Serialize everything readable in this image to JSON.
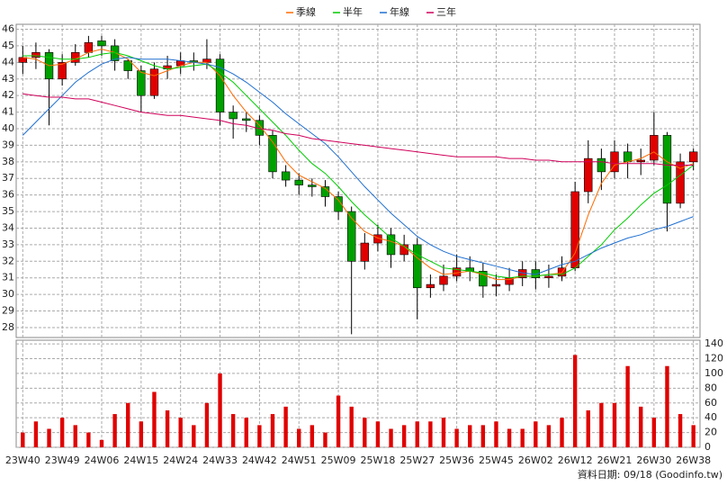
{
  "chart_data": [
    {
      "type": "candlestick",
      "legend": "top",
      "grid": true,
      "up_color": "#e00000",
      "down_color": "#00a000",
      "categories": [
        "23W40",
        null,
        null,
        "23W49",
        null,
        null,
        "24W06",
        null,
        null,
        "24W15",
        null,
        null,
        "24W24",
        null,
        null,
        "24W33",
        null,
        null,
        "24W42",
        null,
        null,
        "24W51",
        null,
        null,
        "25W09",
        null,
        null,
        "25W18",
        null,
        null,
        "25W27",
        null,
        null,
        "25W36",
        null,
        null,
        "25W45",
        null,
        null,
        "26W02",
        null,
        null,
        "26W12",
        null,
        null,
        "26W21",
        null,
        null,
        "26W30",
        null,
        null,
        "26W38"
      ],
      "open": [
        44.0,
        44.3,
        44.6,
        43.0,
        44.0,
        44.6,
        45.3,
        45.0,
        44.1,
        43.5,
        42.0,
        43.6,
        43.8,
        44.1,
        44.0,
        44.2,
        41.0,
        40.6,
        40.5,
        39.6,
        37.4,
        36.9,
        36.6,
        36.5,
        35.9,
        35.0,
        32.0,
        33.1,
        33.6,
        32.4,
        33.0,
        30.4,
        30.6,
        31.1,
        31.6,
        31.4,
        30.5,
        30.6,
        31.0,
        31.5,
        31.0,
        31.1,
        31.6,
        36.2,
        38.2,
        37.4,
        38.6,
        38.0,
        38.1,
        39.6,
        35.5,
        38.0
      ],
      "high": [
        45.0,
        45.2,
        44.8,
        44.5,
        45.1,
        45.6,
        45.6,
        45.4,
        44.2,
        43.8,
        44.0,
        44.4,
        44.6,
        44.6,
        45.4,
        44.5,
        41.4,
        41.0,
        40.8,
        39.9,
        37.8,
        37.3,
        37.0,
        36.9,
        36.2,
        35.3,
        33.7,
        34.2,
        34.0,
        33.6,
        33.4,
        31.2,
        31.8,
        32.4,
        32.3,
        31.9,
        31.2,
        31.6,
        32.0,
        32.0,
        31.8,
        32.3,
        36.8,
        39.3,
        38.8,
        39.3,
        39.1,
        38.8,
        41.0,
        39.8,
        38.5,
        38.8
      ],
      "low": [
        43.3,
        43.6,
        40.2,
        42.6,
        43.8,
        44.3,
        44.4,
        43.5,
        43.0,
        41.0,
        41.8,
        43.0,
        43.3,
        43.5,
        43.6,
        40.2,
        39.4,
        39.8,
        39.0,
        37.0,
        36.5,
        36.0,
        35.9,
        35.3,
        34.5,
        27.6,
        31.5,
        32.6,
        31.6,
        32.0,
        28.5,
        29.8,
        30.2,
        30.8,
        30.8,
        29.8,
        29.9,
        30.2,
        30.5,
        30.3,
        30.4,
        30.8,
        31.4,
        35.5,
        36.3,
        37.0,
        37.0,
        37.2,
        37.8,
        33.8,
        35.2,
        37.5
      ],
      "close": [
        44.3,
        44.6,
        43.0,
        44.0,
        44.6,
        45.2,
        45.0,
        44.1,
        43.5,
        42.0,
        43.6,
        43.8,
        44.1,
        44.0,
        44.2,
        41.0,
        40.6,
        40.5,
        39.6,
        37.4,
        36.9,
        36.6,
        36.5,
        35.9,
        35.0,
        32.0,
        33.1,
        33.6,
        32.4,
        33.0,
        30.4,
        30.6,
        31.1,
        31.6,
        31.4,
        30.5,
        30.6,
        31.0,
        31.5,
        31.0,
        31.1,
        31.6,
        36.2,
        38.2,
        37.4,
        38.6,
        38.0,
        38.1,
        39.6,
        35.5,
        38.0,
        38.6
      ],
      "series": [
        {
          "name": "季線",
          "color": "#ff6a00",
          "values": [
            44.3,
            44.2,
            43.8,
            43.9,
            44.2,
            44.6,
            44.8,
            44.6,
            44.2,
            43.4,
            43.2,
            43.5,
            43.8,
            44.0,
            44.0,
            43.2,
            42.0,
            41.0,
            40.2,
            39.2,
            38.0,
            37.2,
            36.8,
            36.4,
            35.7,
            34.6,
            33.8,
            33.4,
            33.2,
            32.9,
            32.2,
            31.6,
            31.2,
            31.3,
            31.4,
            31.2,
            30.9,
            30.9,
            31.1,
            31.1,
            31.2,
            31.3,
            32.5,
            34.8,
            36.7,
            37.8,
            38.0,
            38.2,
            38.6,
            38.0,
            37.6,
            37.9
          ]
        },
        {
          "name": "半年",
          "color": "#00cc00",
          "values": [
            44.4,
            44.4,
            44.3,
            44.2,
            44.2,
            44.3,
            44.5,
            44.6,
            44.4,
            44.1,
            43.8,
            43.6,
            43.7,
            43.8,
            43.9,
            43.4,
            42.8,
            42.0,
            41.2,
            40.4,
            39.6,
            38.7,
            37.9,
            37.3,
            36.5,
            35.6,
            34.8,
            34.1,
            33.4,
            32.9,
            32.4,
            32.0,
            31.6,
            31.5,
            31.4,
            31.3,
            31.1,
            31.0,
            31.1,
            31.1,
            31.2,
            31.2,
            31.6,
            32.3,
            33.0,
            33.9,
            34.6,
            35.4,
            36.1,
            36.6,
            37.2,
            37.8
          ]
        },
        {
          "name": "年線",
          "color": "#1f6fd0",
          "values": [
            39.6,
            40.4,
            41.2,
            42.0,
            42.8,
            43.4,
            43.9,
            44.2,
            44.3,
            44.2,
            44.2,
            44.2,
            44.1,
            44.0,
            43.9,
            43.7,
            43.3,
            42.8,
            42.2,
            41.6,
            40.9,
            40.3,
            39.7,
            39.1,
            38.3,
            37.4,
            36.5,
            35.7,
            34.9,
            34.2,
            33.5,
            33.0,
            32.6,
            32.3,
            32.1,
            31.9,
            31.7,
            31.5,
            31.3,
            31.2,
            31.5,
            31.8,
            32.0,
            32.4,
            32.8,
            33.1,
            33.4,
            33.6,
            33.9,
            34.1,
            34.4,
            34.7
          ]
        },
        {
          "name": "三年",
          "color": "#d0005a",
          "values": [
            42.1,
            42.0,
            41.9,
            41.9,
            41.8,
            41.8,
            41.6,
            41.4,
            41.2,
            41.0,
            40.9,
            40.8,
            40.8,
            40.7,
            40.6,
            40.5,
            40.3,
            40.2,
            40.0,
            39.9,
            39.7,
            39.6,
            39.4,
            39.3,
            39.2,
            39.1,
            39.0,
            38.9,
            38.8,
            38.7,
            38.6,
            38.5,
            38.4,
            38.3,
            38.3,
            38.3,
            38.3,
            38.2,
            38.2,
            38.1,
            38.1,
            38.0,
            38.0,
            38.0,
            38.0,
            37.9,
            37.9,
            37.9,
            37.9,
            37.8,
            37.8,
            37.8
          ]
        }
      ],
      "ylim": [
        27.4,
        46.3
      ],
      "yticks": [
        28,
        29,
        30,
        31,
        32,
        33,
        34,
        35,
        36,
        37,
        38,
        39,
        40,
        41,
        42,
        43,
        44,
        45,
        46
      ]
    },
    {
      "type": "bar",
      "color": "#e00000",
      "grid": true,
      "values": [
        20,
        35,
        25,
        40,
        30,
        20,
        10,
        45,
        60,
        35,
        75,
        50,
        40,
        30,
        60,
        100,
        45,
        40,
        30,
        45,
        55,
        25,
        30,
        20,
        70,
        55,
        40,
        35,
        25,
        30,
        35,
        35,
        40,
        25,
        30,
        30,
        35,
        25,
        25,
        35,
        30,
        40,
        125,
        50,
        60,
        60,
        110,
        55,
        40,
        110,
        45,
        30
      ],
      "ylim": [
        0,
        145
      ],
      "yticks": [
        0,
        20,
        40,
        60,
        80,
        100,
        120,
        140
      ],
      "note": "資料日期: 09/18  (Goodinfo.tw)"
    }
  ]
}
